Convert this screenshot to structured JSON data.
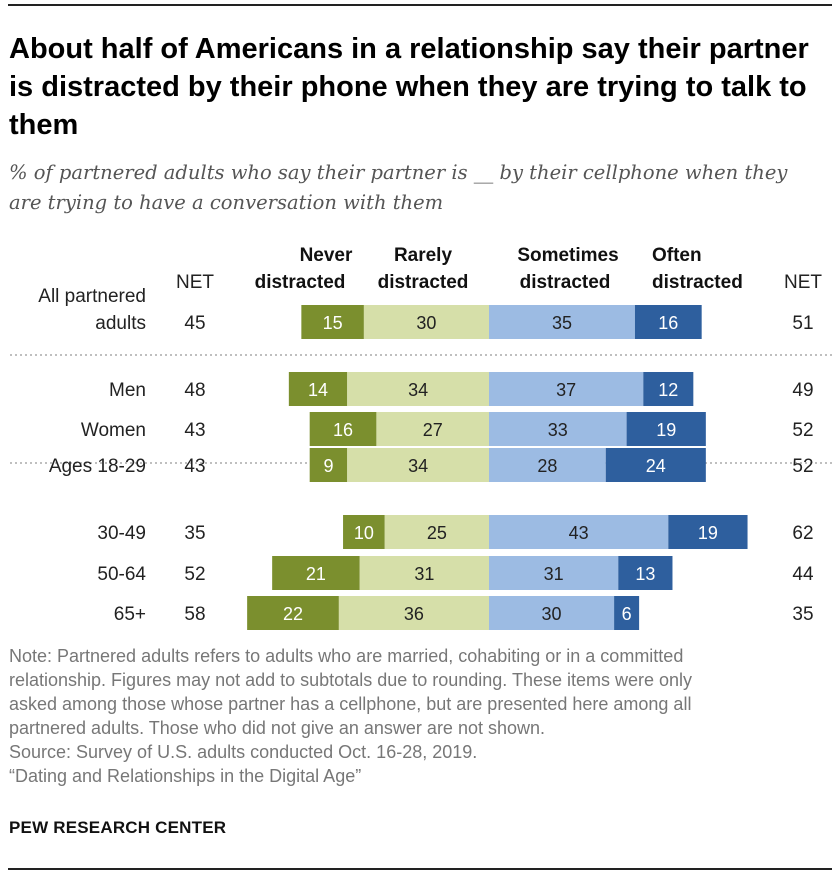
{
  "title": "About half of Americans in a relationship say their partner is distracted by their phone when they are trying to talk to them",
  "subtitle": "% of partnered adults who say their partner is __ by their cellphone when they are trying to have a conversation with them",
  "colors": {
    "never": "#7b8f2e",
    "rarely": "#d6dfa9",
    "sometimes": "#9cbbe3",
    "often": "#2e5f9e"
  },
  "chart_data": {
    "type": "bar",
    "orientation": "horizontal-diverging",
    "stacked": true,
    "column_headers": {
      "net_left": "NET",
      "net_right": "NET",
      "never": [
        "Never",
        "distracted"
      ],
      "rarely": [
        "Rarely",
        "distracted"
      ],
      "sometimes": [
        "Sometimes",
        "distracted"
      ],
      "often": [
        "Often",
        "distracted"
      ]
    },
    "series": [
      {
        "name": "Never distracted",
        "key": "never"
      },
      {
        "name": "Rarely distracted",
        "key": "rarely"
      },
      {
        "name": "Sometimes distracted",
        "key": "sometimes"
      },
      {
        "name": "Often distracted",
        "key": "often"
      }
    ],
    "rows": [
      {
        "label": [
          "All partnered",
          "adults"
        ],
        "group": 0,
        "net_left": 45,
        "never": 15,
        "rarely": 30,
        "sometimes": 35,
        "often": 16,
        "net_right": 51
      },
      {
        "label": [
          "Men"
        ],
        "group": 1,
        "net_left": 48,
        "never": 14,
        "rarely": 34,
        "sometimes": 37,
        "often": 12,
        "net_right": 49
      },
      {
        "label": [
          "Women"
        ],
        "group": 1,
        "net_left": 43,
        "never": 16,
        "rarely": 27,
        "sometimes": 33,
        "often": 19,
        "net_right": 52
      },
      {
        "label": [
          "Ages 18-29"
        ],
        "group": 2,
        "net_left": 43,
        "never": 9,
        "rarely": 34,
        "sometimes": 28,
        "often": 24,
        "net_right": 52
      },
      {
        "label": [
          "30-49"
        ],
        "group": 2,
        "net_left": 35,
        "never": 10,
        "rarely": 25,
        "sometimes": 43,
        "often": 19,
        "net_right": 62
      },
      {
        "label": [
          "50-64"
        ],
        "group": 2,
        "net_left": 52,
        "never": 21,
        "rarely": 31,
        "sometimes": 31,
        "often": 13,
        "net_right": 44
      },
      {
        "label": [
          "65+"
        ],
        "group": 2,
        "net_left": 58,
        "never": 22,
        "rarely": 36,
        "sometimes": 30,
        "often": 6,
        "net_right": 35
      }
    ]
  },
  "notes": [
    "Note: Partnered adults refers to adults who are married, cohabiting or in a committed",
    "relationship. Figures may not add to subtotals due to rounding. These items were only",
    "asked among those whose partner has a cellphone, but are presented here among all",
    "partnered adults. Those who did not give an answer are not shown.",
    "Source: Survey of U.S. adults conducted Oct. 16-28, 2019.",
    "“Dating and Relationships in the Digital Age”"
  ],
  "brand": "PEW RESEARCH CENTER"
}
